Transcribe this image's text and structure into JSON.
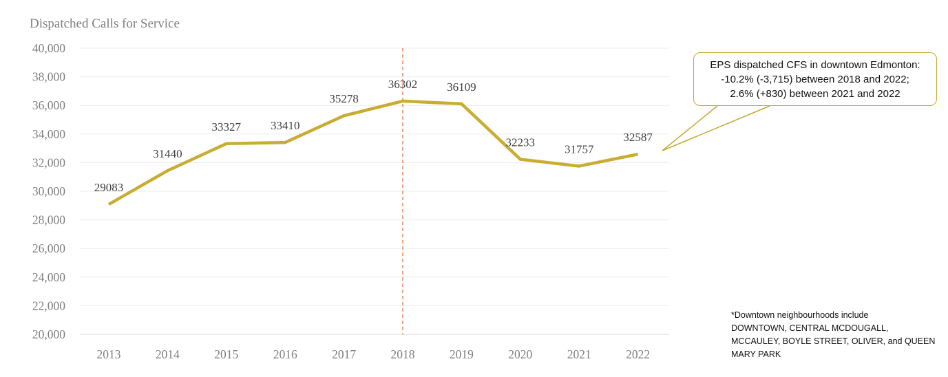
{
  "chart_data": {
    "type": "line",
    "title": "Dispatched Calls for Service",
    "categories": [
      "2013",
      "2014",
      "2015",
      "2016",
      "2017",
      "2018",
      "2019",
      "2020",
      "2021",
      "2022"
    ],
    "series": [
      {
        "values": [
          29083,
          31440,
          33327,
          33410,
          35278,
          36302,
          36109,
          32233,
          31757,
          32587
        ]
      }
    ],
    "data_labels": [
      "29083",
      "31440",
      "33327",
      "33410",
      "35278",
      "36302",
      "36109",
      "32233",
      "31757",
      "32587"
    ],
    "ylim": [
      20000,
      40000
    ],
    "yticks": [
      20000,
      22000,
      24000,
      26000,
      28000,
      30000,
      32000,
      34000,
      36000,
      38000,
      40000
    ],
    "ytick_labels": [
      "20,000",
      "22,000",
      "24,000",
      "26,000",
      "28,000",
      "30,000",
      "32,000",
      "34,000",
      "36,000",
      "38,000",
      "40,000"
    ],
    "grid": true,
    "reference_line": {
      "at": "2018",
      "style": "dashed"
    },
    "line_color": "#c9ad32",
    "reference_line_color": "#e8895a"
  },
  "callout": {
    "lines": [
      "EPS dispatched CFS in downtown Edmonton:",
      "-10.2% (-3,715) between 2018 and 2022;",
      "2.6% (+830) between 2021 and 2022"
    ]
  },
  "footnote": {
    "lines": [
      "*Downtown neighbourhoods include",
      "DOWNTOWN, CENTRAL MCDOUGALL,",
      "MCCAULEY, BOYLE STREET, OLIVER, and QUEEN",
      "MARY PARK"
    ]
  }
}
